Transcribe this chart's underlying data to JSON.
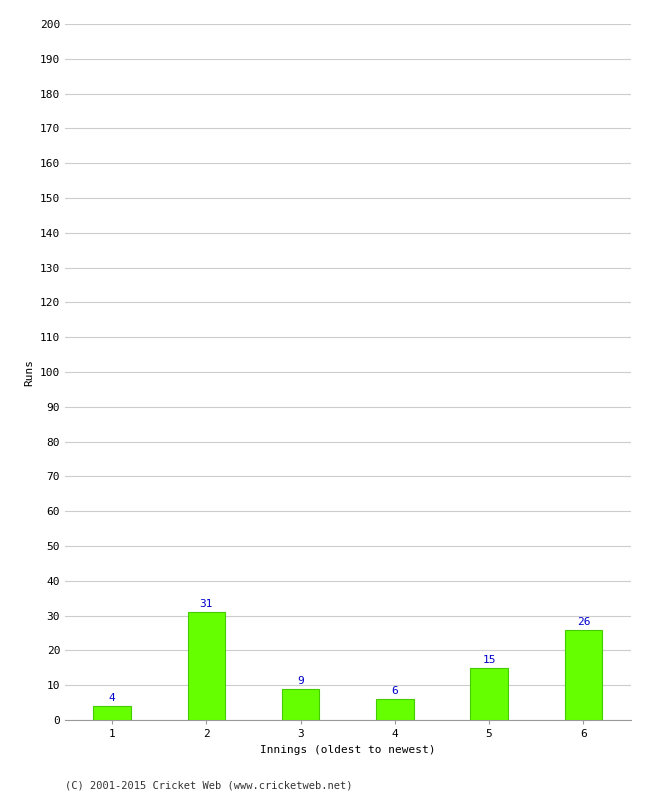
{
  "categories": [
    "1",
    "2",
    "3",
    "4",
    "5",
    "6"
  ],
  "values": [
    4,
    31,
    9,
    6,
    15,
    26
  ],
  "bar_color": "#66ff00",
  "bar_edgecolor": "#44cc00",
  "label_color": "#0000cc",
  "xlabel": "Innings (oldest to newest)",
  "ylabel": "Runs",
  "ylim": [
    0,
    200
  ],
  "yticks": [
    0,
    10,
    20,
    30,
    40,
    50,
    60,
    70,
    80,
    90,
    100,
    110,
    120,
    130,
    140,
    150,
    160,
    170,
    180,
    190,
    200
  ],
  "label_fontsize": 8,
  "axis_label_fontsize": 8,
  "tick_fontsize": 8,
  "footer": "(C) 2001-2015 Cricket Web (www.cricketweb.net)",
  "footer_fontsize": 7.5,
  "background_color": "#ffffff",
  "grid_color": "#cccccc",
  "bar_width": 0.4
}
